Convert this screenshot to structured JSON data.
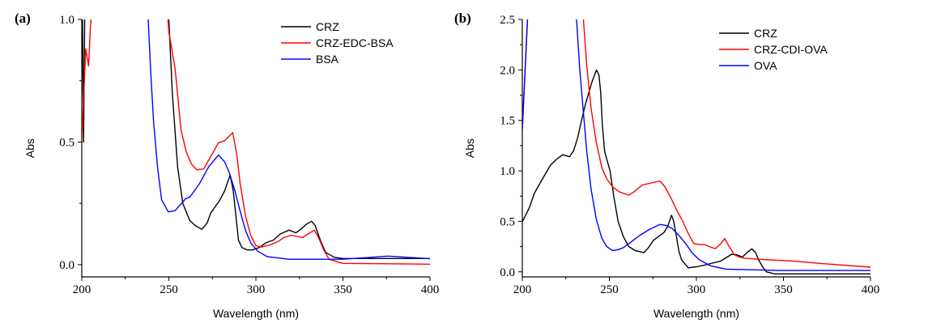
{
  "chart_data": [
    {
      "type": "line",
      "panel_label": "(a)",
      "xlabel": "Wavelength (nm)",
      "ylabel": "Abs",
      "xlim": [
        200,
        400
      ],
      "ylim": [
        -0.05,
        1.0
      ],
      "xticks": [
        200,
        250,
        300,
        350,
        400
      ],
      "yticks": [
        0.0,
        0.5,
        1.0
      ],
      "ytick_labels": [
        "0.0",
        "0.5",
        "1.0"
      ],
      "grid": false,
      "legend": "top-right",
      "series": [
        {
          "name": "CRZ",
          "color": "#000000",
          "points": [
            [
              200.3,
              1.1
            ],
            [
              201,
              0.5
            ],
            [
              201.8,
              1.1
            ],
            [
              249,
              1.1
            ],
            [
              250,
              1.0
            ],
            [
              252,
              0.7
            ],
            [
              255,
              0.4
            ],
            [
              258,
              0.25
            ],
            [
              262,
              0.18
            ],
            [
              265,
              0.16
            ],
            [
              269,
              0.144
            ],
            [
              272,
              0.17
            ],
            [
              274,
              0.21
            ],
            [
              276,
              0.23
            ],
            [
              279,
              0.26
            ],
            [
              282,
              0.3
            ],
            [
              285.2,
              0.365
            ],
            [
              287,
              0.3
            ],
            [
              288.5,
              0.2
            ],
            [
              290,
              0.1
            ],
            [
              292,
              0.07
            ],
            [
              295,
              0.06
            ],
            [
              298,
              0.06
            ],
            [
              302,
              0.07
            ],
            [
              306,
              0.09
            ],
            [
              310,
              0.1
            ],
            [
              314,
              0.125
            ],
            [
              319,
              0.141
            ],
            [
              323,
              0.13
            ],
            [
              326,
              0.145
            ],
            [
              329,
              0.165
            ],
            [
              332,
              0.177
            ],
            [
              334,
              0.16
            ],
            [
              337,
              0.1
            ],
            [
              340,
              0.05
            ],
            [
              345,
              0.03
            ],
            [
              350,
              0.025
            ],
            [
              400,
              0.025
            ]
          ]
        },
        {
          "name": "CRZ-EDC-BSA",
          "color": "#ff0000",
          "points": [
            [
              200,
              0.51
            ],
            [
              202.3,
              0.88
            ],
            [
              203.9,
              0.81
            ],
            [
              205,
              0.98
            ],
            [
              206,
              1.05
            ],
            [
              249,
              1.05
            ],
            [
              250,
              0.95
            ],
            [
              253.6,
              0.8
            ],
            [
              257,
              0.55
            ],
            [
              260,
              0.46
            ],
            [
              263,
              0.41
            ],
            [
              266,
              0.387
            ],
            [
              270,
              0.39
            ],
            [
              274,
              0.44
            ],
            [
              278.5,
              0.497
            ],
            [
              282,
              0.505
            ],
            [
              286.7,
              0.538
            ],
            [
              289,
              0.45
            ],
            [
              291,
              0.33
            ],
            [
              294,
              0.2
            ],
            [
              297,
              0.12
            ],
            [
              300,
              0.077
            ],
            [
              303.3,
              0.072
            ],
            [
              308,
              0.08
            ],
            [
              312.7,
              0.094
            ],
            [
              316,
              0.11
            ],
            [
              320.4,
              0.12
            ],
            [
              326.7,
              0.11
            ],
            [
              330,
              0.125
            ],
            [
              333.6,
              0.141
            ],
            [
              336,
              0.11
            ],
            [
              339,
              0.06
            ],
            [
              342,
              0.022
            ],
            [
              350,
              0.005
            ],
            [
              400,
              0.002
            ]
          ]
        },
        {
          "name": "BSA",
          "color": "#0000ff",
          "points": [
            [
              237.8,
              1.05
            ],
            [
              239.5,
              0.8
            ],
            [
              241.2,
              0.585
            ],
            [
              243.5,
              0.4
            ],
            [
              245.8,
              0.265
            ],
            [
              249.7,
              0.215
            ],
            [
              253.6,
              0.22
            ],
            [
              256,
              0.24
            ],
            [
              259.8,
              0.27
            ],
            [
              262,
              0.275
            ],
            [
              267.6,
              0.33
            ],
            [
              273,
              0.4
            ],
            [
              278.5,
              0.447
            ],
            [
              282,
              0.42
            ],
            [
              284.7,
              0.376
            ],
            [
              288,
              0.3
            ],
            [
              290.9,
              0.22
            ],
            [
              294,
              0.14
            ],
            [
              297.1,
              0.088
            ],
            [
              301,
              0.055
            ],
            [
              306.4,
              0.033
            ],
            [
              318.9,
              0.022
            ],
            [
              350,
              0.022
            ],
            [
              376,
              0.035
            ],
            [
              400,
              0.024
            ]
          ]
        }
      ]
    },
    {
      "type": "line",
      "panel_label": "(b)",
      "xlabel": "Wavelength (nm)",
      "ylabel": "Abs",
      "xlim": [
        200,
        400
      ],
      "ylim": [
        -0.05,
        2.5
      ],
      "xticks": [
        200,
        250,
        300,
        350,
        400
      ],
      "yticks": [
        0.0,
        0.5,
        1.0,
        1.5,
        2.0,
        2.5
      ],
      "ytick_labels": [
        "0.0",
        "0.5",
        "1.0",
        "1.5",
        "2.0",
        "2.5"
      ],
      "grid": false,
      "legend": "top-right",
      "series": [
        {
          "name": "CRZ",
          "color": "#000000",
          "points": [
            [
              200,
              0.496
            ],
            [
              203.9,
              0.63
            ],
            [
              207,
              0.78
            ],
            [
              211.6,
              0.92
            ],
            [
              216.3,
              1.06
            ],
            [
              220,
              1.12
            ],
            [
              223.3,
              1.16
            ],
            [
              227.1,
              1.14
            ],
            [
              229.5,
              1.2
            ],
            [
              231.8,
              1.33
            ],
            [
              234,
              1.5
            ],
            [
              236.4,
              1.67
            ],
            [
              240,
              1.88
            ],
            [
              242.6,
              2.0
            ],
            [
              244,
              1.95
            ],
            [
              245,
              1.78
            ],
            [
              246,
              1.45
            ],
            [
              247.3,
              1.19
            ],
            [
              250.4,
              1.0
            ],
            [
              252.5,
              0.75
            ],
            [
              255,
              0.5
            ],
            [
              258,
              0.35
            ],
            [
              261.2,
              0.25
            ],
            [
              265,
              0.21
            ],
            [
              269.8,
              0.19
            ],
            [
              272.5,
              0.24
            ],
            [
              275.2,
              0.31
            ],
            [
              281.4,
              0.39
            ],
            [
              283.5,
              0.45
            ],
            [
              285.7,
              0.56
            ],
            [
              287,
              0.5
            ],
            [
              288.4,
              0.36
            ],
            [
              290,
              0.2
            ],
            [
              291.5,
              0.12
            ],
            [
              295.3,
              0.04
            ],
            [
              300,
              0.05
            ],
            [
              304.7,
              0.067
            ],
            [
              310,
              0.09
            ],
            [
              314,
              0.107
            ],
            [
              320.2,
              0.174
            ],
            [
              323,
              0.17
            ],
            [
              326.4,
              0.147
            ],
            [
              329,
              0.19
            ],
            [
              331.8,
              0.228
            ],
            [
              334,
              0.19
            ],
            [
              335.7,
              0.12
            ],
            [
              338,
              0.05
            ],
            [
              340.3,
              0.0
            ],
            [
              345,
              -0.02
            ],
            [
              400,
              -0.02
            ]
          ]
        },
        {
          "name": "CRZ-CDI-OVA",
          "color": "#ff0000",
          "points": [
            [
              200,
              1.41
            ],
            [
              203.1,
              2.55
            ],
            [
              234.9,
              2.55
            ],
            [
              237,
              2.05
            ],
            [
              239.5,
              1.62
            ],
            [
              242.5,
              1.28
            ],
            [
              245.7,
              1.03
            ],
            [
              248.5,
              0.92
            ],
            [
              251.9,
              0.84
            ],
            [
              256,
              0.79
            ],
            [
              261.2,
              0.76
            ],
            [
              264,
              0.79
            ],
            [
              268.9,
              0.86
            ],
            [
              274,
              0.88
            ],
            [
              279,
              0.9
            ],
            [
              282,
              0.84
            ],
            [
              286,
              0.71
            ],
            [
              289,
              0.6
            ],
            [
              292.2,
              0.5
            ],
            [
              295,
              0.39
            ],
            [
              298.4,
              0.28
            ],
            [
              301.5,
              0.27
            ],
            [
              304.7,
              0.27
            ],
            [
              307.5,
              0.25
            ],
            [
              310.9,
              0.23
            ],
            [
              313.5,
              0.27
            ],
            [
              316.3,
              0.33
            ],
            [
              318.5,
              0.26
            ],
            [
              321.7,
              0.17
            ],
            [
              325,
              0.145
            ],
            [
              328,
              0.134
            ],
            [
              340.3,
              0.12
            ],
            [
              355.8,
              0.107
            ],
            [
              370,
              0.085
            ],
            [
              400,
              0.046
            ]
          ]
        },
        {
          "name": "OVA",
          "color": "#0000ff",
          "points": [
            [
              200,
              1.41
            ],
            [
              203.1,
              2.55
            ],
            [
              231,
              2.55
            ],
            [
              233,
              2.0
            ],
            [
              234.9,
              1.62
            ],
            [
              237,
              1.2
            ],
            [
              239.5,
              0.82
            ],
            [
              242.5,
              0.52
            ],
            [
              245.7,
              0.33
            ],
            [
              248.5,
              0.25
            ],
            [
              251.9,
              0.21
            ],
            [
              255,
              0.22
            ],
            [
              258.1,
              0.24
            ],
            [
              262,
              0.29
            ],
            [
              267.4,
              0.36
            ],
            [
              273,
              0.42
            ],
            [
              279,
              0.47
            ],
            [
              282.5,
              0.46
            ],
            [
              286,
              0.43
            ],
            [
              290,
              0.36
            ],
            [
              293.8,
              0.28
            ],
            [
              297.5,
              0.19
            ],
            [
              301.6,
              0.12
            ],
            [
              308,
              0.06
            ],
            [
              317,
              0.027
            ],
            [
              348,
              0.013
            ],
            [
              400,
              0.013
            ]
          ]
        }
      ]
    }
  ]
}
